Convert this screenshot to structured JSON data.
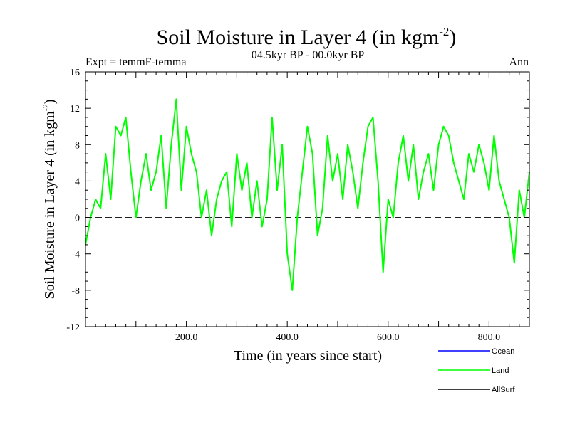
{
  "chart_data": {
    "type": "line",
    "title": "Soil Moisture in Layer 4 (in kgm",
    "title_sup": "-2",
    "title_close": ")",
    "subtitle": "04.5kyr BP - 00.0kyr BP",
    "expt_label": "Expt = temmF-temma",
    "period_label": "Ann",
    "xlabel": "Time (in years since start)",
    "ylabel": "Soil Moisture in Layer 4 (in kgm",
    "ylabel_sup": "-2",
    "ylabel_close": ")",
    "xlim": [
      0,
      880
    ],
    "ylim": [
      -12,
      16
    ],
    "yticks": [
      -12,
      -8,
      -4,
      0,
      4,
      8,
      12,
      16
    ],
    "ytick_labels": [
      "-12",
      "-8",
      "-4",
      "0",
      "4",
      "8",
      "12",
      "16"
    ],
    "xticks": [
      200,
      400,
      600,
      800
    ],
    "xtick_labels": [
      "200.0",
      "400.0",
      "600.0",
      "800.0"
    ],
    "zero_line": 0,
    "legend_position": "bottom-right",
    "series": [
      {
        "name": "Ocean",
        "color": "#0000ff",
        "values": []
      },
      {
        "name": "Land",
        "color": "#00ff00",
        "x": [
          0,
          10,
          20,
          30,
          40,
          50,
          60,
          70,
          80,
          90,
          100,
          110,
          120,
          130,
          140,
          150,
          160,
          170,
          180,
          190,
          200,
          210,
          220,
          230,
          240,
          250,
          260,
          270,
          280,
          290,
          300,
          310,
          320,
          330,
          340,
          350,
          360,
          370,
          380,
          390,
          400,
          410,
          420,
          430,
          440,
          450,
          460,
          470,
          480,
          490,
          500,
          510,
          520,
          530,
          540,
          550,
          560,
          570,
          580,
          590,
          600,
          610,
          620,
          630,
          640,
          650,
          660,
          670,
          680,
          690,
          700,
          710,
          720,
          730,
          740,
          750,
          760,
          770,
          780,
          790,
          800,
          810,
          820,
          830,
          840,
          850,
          860,
          870,
          880
        ],
        "values": [
          -3,
          0,
          2,
          1,
          7,
          2,
          10,
          9,
          11,
          5,
          0,
          4,
          7,
          3,
          5,
          9,
          1,
          8,
          13,
          3,
          10,
          7,
          5,
          0,
          3,
          -2,
          2,
          4,
          5,
          -1,
          7,
          3,
          6,
          0,
          4,
          -1,
          2,
          11,
          3,
          8,
          -4,
          -8,
          0,
          5,
          10,
          7,
          -2,
          1,
          9,
          4,
          7,
          2,
          8,
          5,
          1,
          6,
          10,
          11,
          4,
          -6,
          2,
          0,
          6,
          9,
          4,
          8,
          2,
          5,
          7,
          3,
          8,
          10,
          9,
          6,
          4,
          2,
          7,
          5,
          8,
          6,
          3,
          9,
          4,
          2,
          0,
          -5,
          3,
          0,
          5
        ]
      },
      {
        "name": "AllSurf",
        "color": "#000000",
        "values": []
      }
    ]
  }
}
